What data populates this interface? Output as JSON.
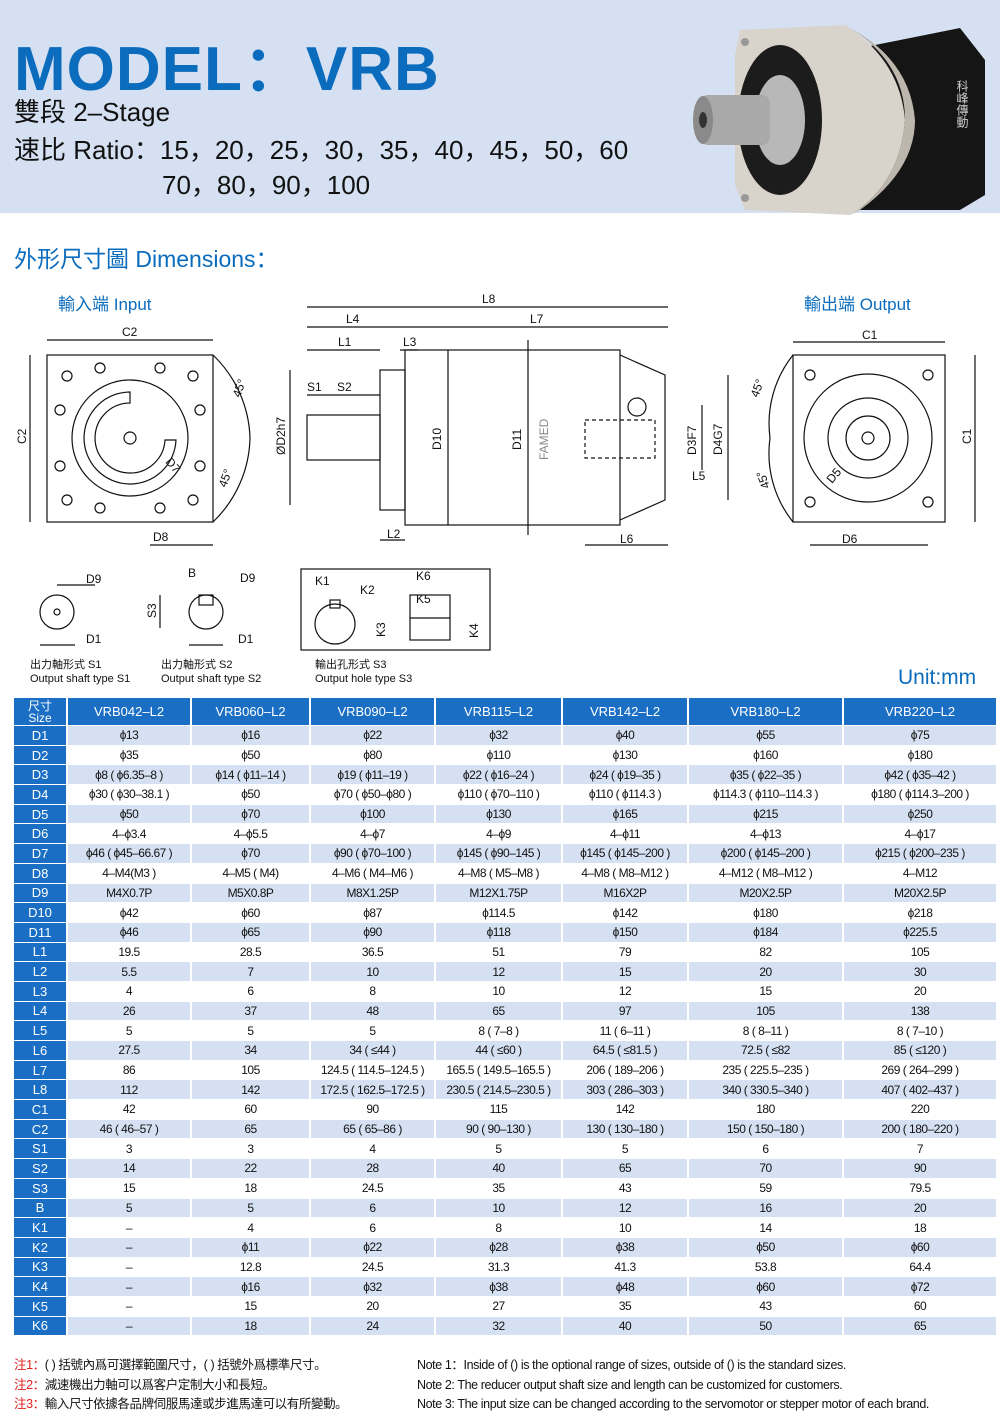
{
  "header": {
    "title": "MODEL：VRB",
    "stage": "雙段 2–Stage",
    "ratio_line1": "速比  Ratio：15，20，25，30，35，40，45，50，60",
    "ratio_line2": "70，80，90，100",
    "product_logo_text": "科峰傳動"
  },
  "dimensions": {
    "heading": "外形尺寸圖 Dimensions：",
    "input_label": "輸入端 Input",
    "output_label": "輸出端 Output",
    "labels": {
      "C1": "C1",
      "C2": "C2",
      "L1": "L1",
      "L2": "L2",
      "L3": "L3",
      "L4": "L4",
      "L5": "L5",
      "L6": "L6",
      "L7": "L7",
      "L8": "L8",
      "S1": "S1",
      "S2": "S2",
      "S3": "S3",
      "D2": "ØD2h7",
      "D3": "D3F7",
      "D4": "D4G7",
      "D5": "D5",
      "D6": "D6",
      "D7": "D7",
      "D8": "D8",
      "D9": "D9",
      "D10": "D10",
      "D11": "D11",
      "D1": "D1",
      "B": "B",
      "K1": "K1",
      "K2": "K2",
      "K3": "K3",
      "K4": "K4",
      "K5": "K5",
      "K6": "K6",
      "angle": "45°"
    },
    "brand_mark": "FAMED",
    "captions": {
      "s1_cn": "出力軸形式 S1",
      "s1_en": "Output shaft type S1",
      "s2_cn": "出力軸形式 S2",
      "s2_en": "Output shaft type S2",
      "s3_cn": "輸出孔形式 S3",
      "s3_en": "Output hole type S3"
    },
    "unit": "Unit:mm"
  },
  "table": {
    "corner_cn": "尺寸",
    "corner_en": "Size",
    "columns": [
      "VRB042–L2",
      "VRB060–L2",
      "VRB090–L2",
      "VRB115–L2",
      "VRB142–L2",
      "VRB180–L2",
      "VRB220–L2"
    ],
    "rows": [
      {
        "label": "D1",
        "values": [
          "ϕ13",
          "ϕ16",
          "ϕ22",
          "ϕ32",
          "ϕ40",
          "ϕ55",
          "ϕ75"
        ]
      },
      {
        "label": "D2",
        "values": [
          "ϕ35",
          "ϕ50",
          "ϕ80",
          "ϕ110",
          "ϕ130",
          "ϕ160",
          "ϕ180"
        ]
      },
      {
        "label": "D3",
        "values": [
          "ϕ8 ( ϕ6.35–8 )",
          "ϕ14 ( ϕ11–14 )",
          "ϕ19 ( ϕ11–19 )",
          "ϕ22 ( ϕ16–24 )",
          "ϕ24 ( ϕ19–35 )",
          "ϕ35 ( ϕ22–35 )",
          "ϕ42 ( ϕ35–42 )"
        ]
      },
      {
        "label": "D4",
        "values": [
          "ϕ30 ( ϕ30–38.1 )",
          "ϕ50",
          "ϕ70 ( ϕ50–ϕ80 )",
          "ϕ110 ( ϕ70–110 )",
          "ϕ110 ( ϕ114.3 )",
          "ϕ114.3 ( ϕ110–114.3 )",
          "ϕ180 ( ϕ114.3–200 )"
        ]
      },
      {
        "label": "D5",
        "values": [
          "ϕ50",
          "ϕ70",
          "ϕ100",
          "ϕ130",
          "ϕ165",
          "ϕ215",
          "ϕ250"
        ]
      },
      {
        "label": "D6",
        "values": [
          "4–ϕ3.4",
          "4–ϕ5.5",
          "4–ϕ7",
          "4–ϕ9",
          "4–ϕ11",
          "4–ϕ13",
          "4–ϕ17"
        ]
      },
      {
        "label": "D7",
        "values": [
          "ϕ46 ( ϕ45–66.67 )",
          "ϕ70",
          "ϕ90 ( ϕ70–100 )",
          "ϕ145 ( ϕ90–145 )",
          "ϕ145 ( ϕ145–200 )",
          "ϕ200 ( ϕ145–200 )",
          "ϕ215 ( ϕ200–235 )"
        ]
      },
      {
        "label": "D8",
        "values": [
          "4–M4(M3 )",
          "4–M5 ( M4)",
          "4–M6 ( M4–M6 )",
          "4–M8 ( M5–M8 )",
          "4–M8 ( M8–M12 )",
          "4–M12 ( M8–M12 )",
          "4–M12"
        ]
      },
      {
        "label": "D9",
        "values": [
          "M4X0.7P",
          "M5X0.8P",
          "M8X1.25P",
          "M12X1.75P",
          "M16X2P",
          "M20X2.5P",
          "M20X2.5P"
        ]
      },
      {
        "label": "D10",
        "values": [
          "ϕ42",
          "ϕ60",
          "ϕ87",
          "ϕ114.5",
          "ϕ142",
          "ϕ180",
          "ϕ218"
        ]
      },
      {
        "label": "D11",
        "values": [
          "ϕ46",
          "ϕ65",
          "ϕ90",
          "ϕ118",
          "ϕ150",
          "ϕ184",
          "ϕ225.5"
        ]
      },
      {
        "label": "L1",
        "values": [
          "19.5",
          "28.5",
          "36.5",
          "51",
          "79",
          "82",
          "105"
        ]
      },
      {
        "label": "L2",
        "values": [
          "5.5",
          "7",
          "10",
          "12",
          "15",
          "20",
          "30"
        ]
      },
      {
        "label": "L3",
        "values": [
          "4",
          "6",
          "8",
          "10",
          "12",
          "15",
          "20"
        ]
      },
      {
        "label": "L4",
        "values": [
          "26",
          "37",
          "48",
          "65",
          "97",
          "105",
          "138"
        ]
      },
      {
        "label": "L5",
        "values": [
          "5",
          "5",
          "5",
          "8 ( 7–8 )",
          "11 ( 6–11 )",
          "8 ( 8–11 )",
          "8 ( 7–10 )"
        ]
      },
      {
        "label": "L6",
        "values": [
          "27.5",
          "34",
          "34 ( ≤44 )",
          "44 ( ≤60 )",
          "64.5 ( ≤81.5 )",
          "72.5 ( ≤82",
          "85 ( ≤120 )"
        ]
      },
      {
        "label": "L7",
        "values": [
          "86",
          "105",
          "124.5 ( 114.5–124.5 )",
          "165.5 ( 149.5–165.5 )",
          "206 ( 189–206 )",
          "235 ( 225.5–235 )",
          "269 ( 264–299 )"
        ]
      },
      {
        "label": "L8",
        "values": [
          "112",
          "142",
          "172.5 ( 162.5–172.5 )",
          "230.5 ( 214.5–230.5 )",
          "303 ( 286–303 )",
          "340 ( 330.5–340 )",
          "407 ( 402–437 )"
        ]
      },
      {
        "label": "C1",
        "values": [
          "42",
          "60",
          "90",
          "115",
          "142",
          "180",
          "220"
        ]
      },
      {
        "label": "C2",
        "values": [
          "46 ( 46–57 )",
          "65",
          "65 ( 65–86 )",
          "90 ( 90–130 )",
          "130 ( 130–180 )",
          "150 ( 150–180 )",
          "200 ( 180–220 )"
        ]
      },
      {
        "label": "S1",
        "values": [
          "3",
          "3",
          "4",
          "5",
          "5",
          "6",
          "7"
        ]
      },
      {
        "label": "S2",
        "values": [
          "14",
          "22",
          "28",
          "40",
          "65",
          "70",
          "90"
        ]
      },
      {
        "label": "S3",
        "values": [
          "15",
          "18",
          "24.5",
          "35",
          "43",
          "59",
          "79.5"
        ]
      },
      {
        "label": "B",
        "values": [
          "5",
          "5",
          "6",
          "10",
          "12",
          "16",
          "20"
        ]
      },
      {
        "label": "K1",
        "values": [
          "–",
          "4",
          "6",
          "8",
          "10",
          "14",
          "18"
        ]
      },
      {
        "label": "K2",
        "values": [
          "–",
          "ϕ11",
          "ϕ22",
          "ϕ28",
          "ϕ38",
          "ϕ50",
          "ϕ60"
        ]
      },
      {
        "label": "K3",
        "values": [
          "–",
          "12.8",
          "24.5",
          "31.3",
          "41.3",
          "53.8",
          "64.4"
        ]
      },
      {
        "label": "K4",
        "values": [
          "–",
          "ϕ16",
          "ϕ32",
          "ϕ38",
          "ϕ48",
          "ϕ60",
          "ϕ72"
        ]
      },
      {
        "label": "K5",
        "values": [
          "–",
          "15",
          "20",
          "27",
          "35",
          "43",
          "60"
        ]
      },
      {
        "label": "K6",
        "values": [
          "–",
          "18",
          "24",
          "32",
          "40",
          "50",
          "65"
        ]
      }
    ]
  },
  "notes": {
    "cn": [
      {
        "tag": "注1：",
        "text": "( ) 括號內爲可選擇範圍尺寸，( ) 括號外爲標準尺寸。"
      },
      {
        "tag": "注2：",
        "text": "減速機出力軸可以爲客户定制大小和長短。"
      },
      {
        "tag": "注3：",
        "text": "輸入尺寸依據各品牌伺服馬達或步進馬達可以有所變動。"
      }
    ],
    "en": [
      "Note 1：Inside of () is the optional range of sizes, outside of () is the standard sizes.",
      "Note 2: The reducer output shaft size and length can be customized for customers.",
      "Note 3: The input size can be changed according to the servomotor or stepper motor of each brand."
    ]
  },
  "colors": {
    "brand_blue": "#0b6cbd",
    "table_header": "#1a6fc4",
    "row_shade": "#d5e1f2",
    "header_bg": "#d5e1f2",
    "note_red": "#e0201c"
  }
}
